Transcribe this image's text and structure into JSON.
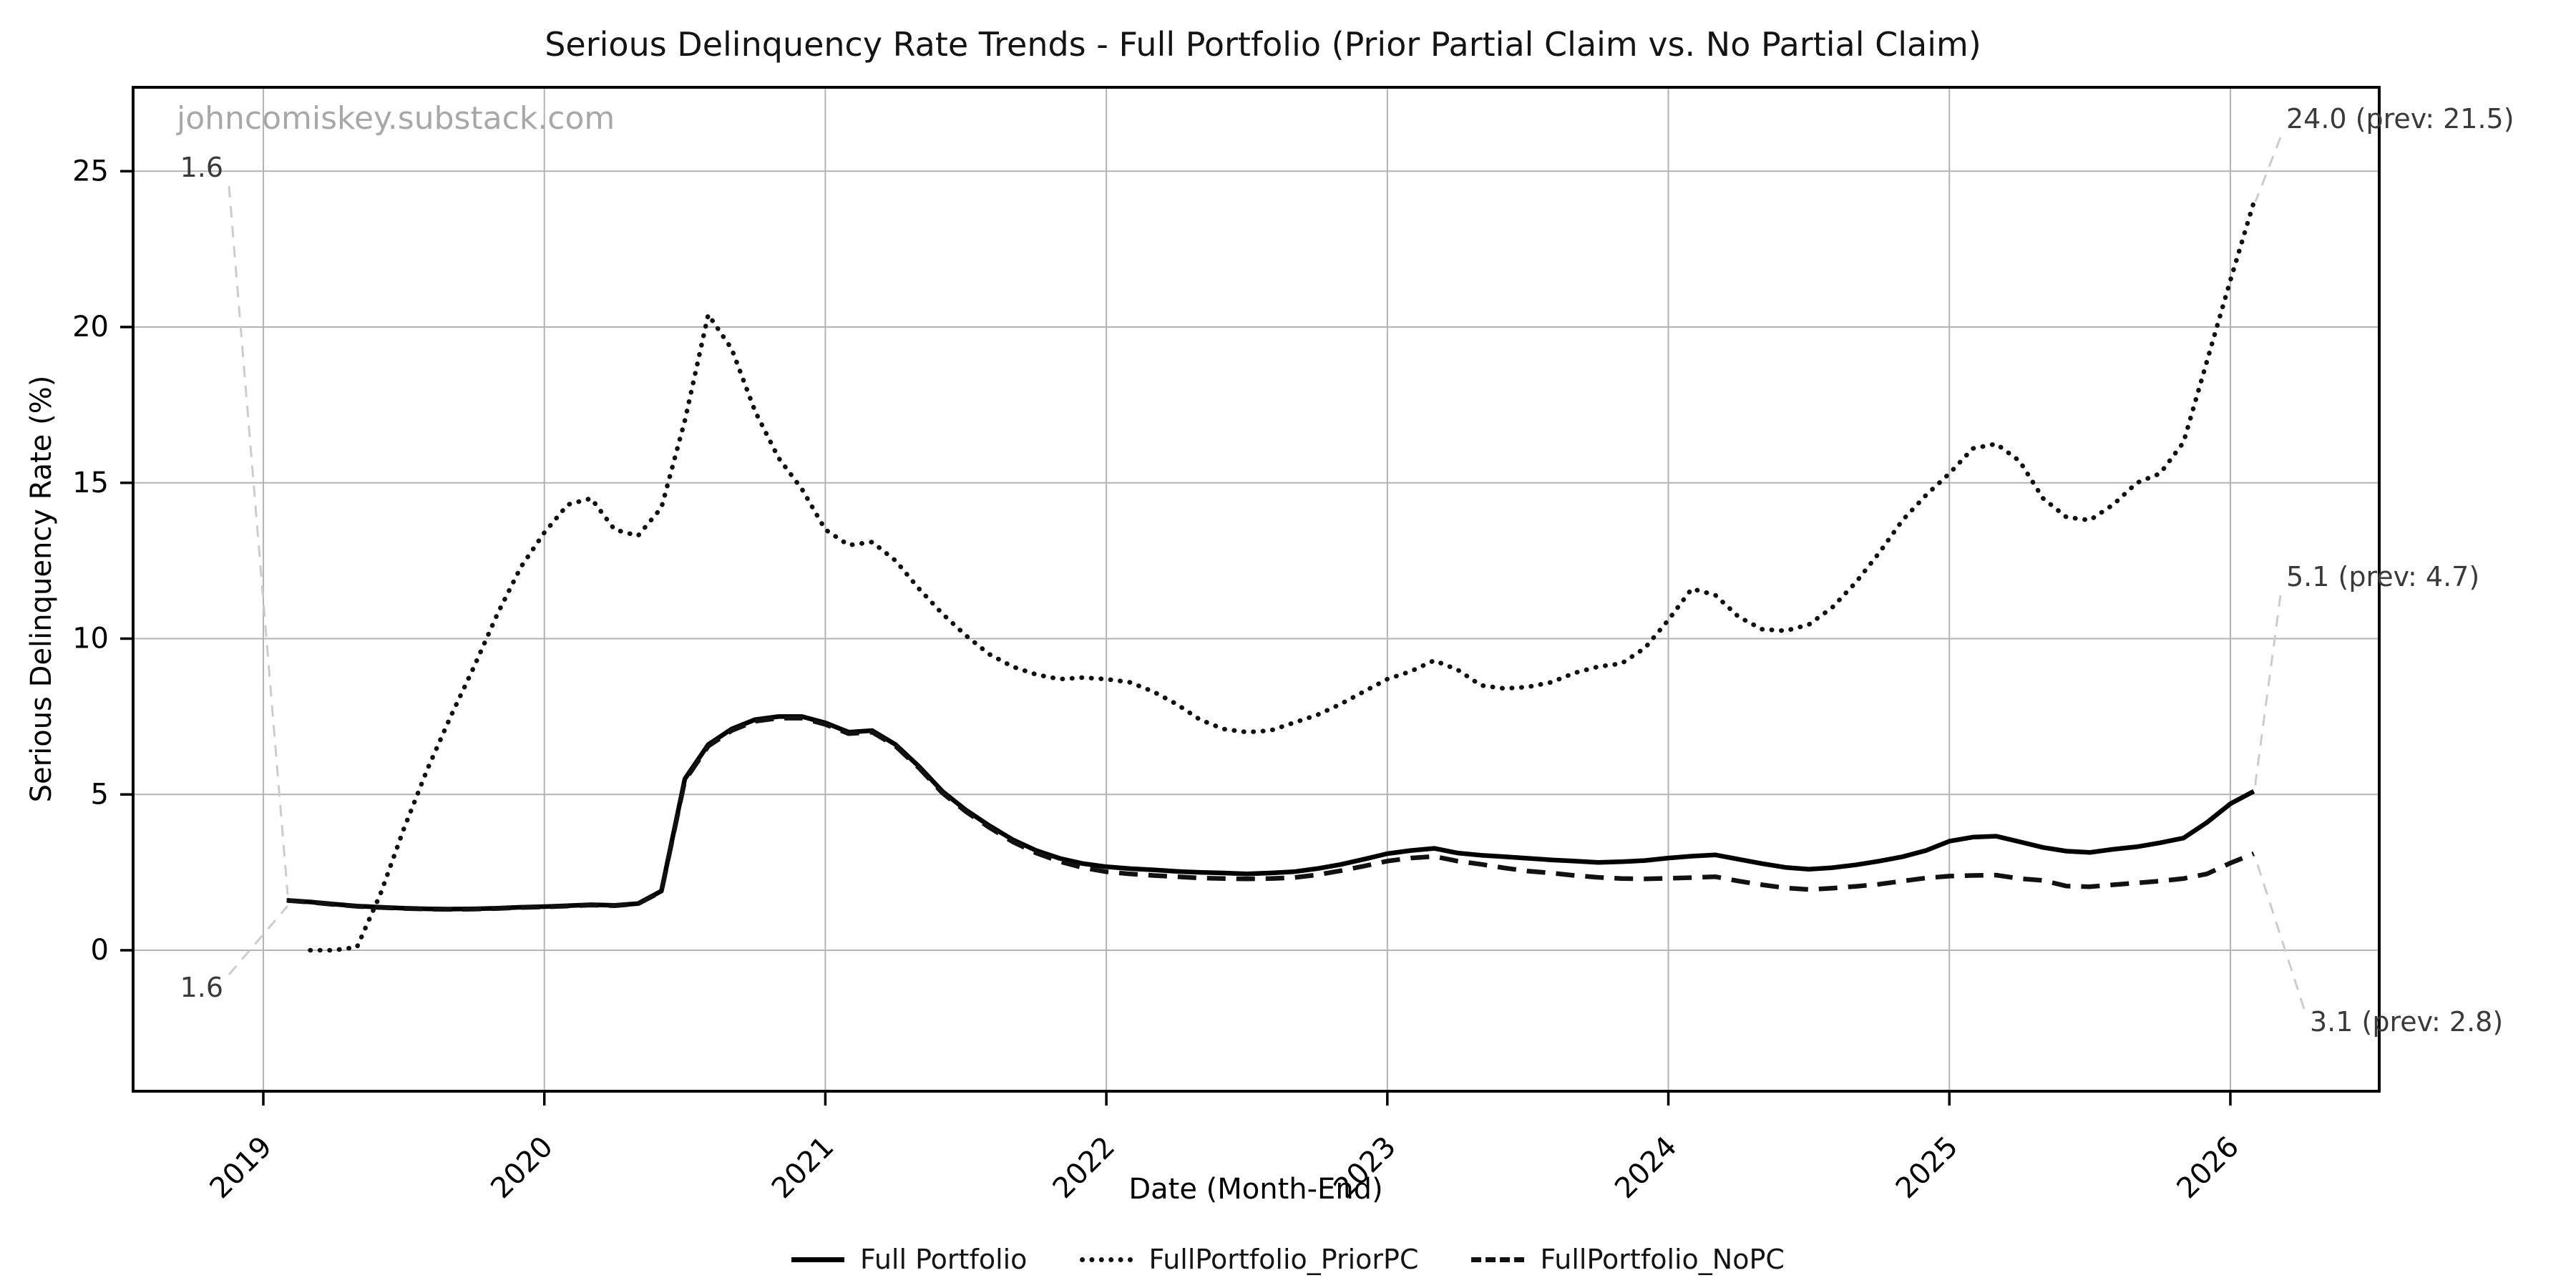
{
  "chart_data": {
    "type": "line",
    "title": "Serious Delinquency Rate Trends - Full Portfolio (Prior Partial Claim vs. No Partial Claim)",
    "xlabel": "Date (Month-End)",
    "ylabel": "Serious Delinquency Rate (%)",
    "watermark": "johncomiskey.substack.com",
    "x_monthly": {
      "start": "2019-01",
      "end": "2026-01",
      "points": 85
    },
    "xticks": [
      "2019",
      "2020",
      "2021",
      "2022",
      "2023",
      "2024",
      "2025",
      "2026"
    ],
    "yticks": [
      0,
      5,
      10,
      15,
      20,
      25
    ],
    "ylim": [
      -4.5,
      27.7
    ],
    "grid": true,
    "legend_position": "bottom-center",
    "series": [
      {
        "name": "Full Portfolio",
        "style": "solid",
        "color": "#000000",
        "values": [
          1.6,
          1.55,
          1.48,
          1.42,
          1.38,
          1.35,
          1.33,
          1.32,
          1.33,
          1.35,
          1.38,
          1.4,
          1.43,
          1.46,
          1.44,
          1.5,
          1.9,
          5.5,
          6.6,
          7.1,
          7.4,
          7.5,
          7.5,
          7.3,
          7.0,
          7.05,
          6.6,
          5.9,
          5.1,
          4.5,
          4.0,
          3.55,
          3.2,
          2.95,
          2.78,
          2.68,
          2.62,
          2.58,
          2.53,
          2.5,
          2.48,
          2.45,
          2.48,
          2.52,
          2.62,
          2.75,
          2.92,
          3.1,
          3.2,
          3.27,
          3.12,
          3.05,
          3.0,
          2.95,
          2.9,
          2.86,
          2.82,
          2.84,
          2.88,
          2.96,
          3.02,
          3.06,
          2.92,
          2.78,
          2.66,
          2.6,
          2.65,
          2.74,
          2.86,
          3.0,
          3.2,
          3.5,
          3.63,
          3.66,
          3.48,
          3.3,
          3.18,
          3.14,
          3.24,
          3.32,
          3.45,
          3.6,
          4.1,
          4.7,
          5.1
        ]
      },
      {
        "name": "FullPortfolio_PriorPC",
        "style": "dotted",
        "color": "#111111",
        "values": [
          null,
          0.0,
          0.0,
          0.1,
          1.8,
          3.9,
          5.8,
          7.5,
          9.1,
          10.8,
          12.3,
          13.4,
          14.3,
          14.5,
          13.5,
          13.3,
          14.2,
          17.0,
          20.4,
          19.3,
          17.3,
          15.8,
          14.8,
          13.5,
          13.0,
          13.1,
          12.5,
          11.6,
          10.8,
          10.1,
          9.5,
          9.1,
          8.85,
          8.7,
          8.75,
          8.7,
          8.6,
          8.3,
          7.9,
          7.4,
          7.1,
          7.0,
          7.05,
          7.3,
          7.55,
          7.9,
          8.3,
          8.7,
          8.95,
          9.3,
          9.0,
          8.5,
          8.4,
          8.45,
          8.6,
          8.9,
          9.1,
          9.2,
          9.7,
          10.6,
          11.6,
          11.4,
          10.7,
          10.3,
          10.25,
          10.45,
          11.0,
          11.8,
          12.75,
          13.8,
          14.6,
          15.3,
          16.1,
          16.25,
          15.7,
          14.5,
          13.9,
          13.8,
          14.3,
          15.0,
          15.3,
          16.3,
          18.9,
          21.5,
          24.0
        ]
      },
      {
        "name": "FullPortfolio_NoPC",
        "style": "dashed",
        "color": "#111111",
        "values": [
          1.6,
          1.54,
          1.47,
          1.41,
          1.37,
          1.34,
          1.32,
          1.31,
          1.32,
          1.34,
          1.37,
          1.39,
          1.42,
          1.45,
          1.43,
          1.49,
          1.88,
          5.45,
          6.55,
          7.05,
          7.35,
          7.45,
          7.45,
          7.25,
          6.95,
          7.0,
          6.55,
          5.85,
          5.05,
          4.45,
          3.94,
          3.48,
          3.12,
          2.85,
          2.65,
          2.52,
          2.45,
          2.4,
          2.36,
          2.32,
          2.3,
          2.29,
          2.3,
          2.33,
          2.42,
          2.55,
          2.7,
          2.86,
          2.96,
          3.01,
          2.86,
          2.76,
          2.64,
          2.54,
          2.48,
          2.4,
          2.34,
          2.3,
          2.29,
          2.31,
          2.33,
          2.36,
          2.22,
          2.1,
          2.0,
          1.95,
          1.99,
          2.05,
          2.12,
          2.22,
          2.32,
          2.38,
          2.4,
          2.41,
          2.3,
          2.24,
          2.06,
          2.04,
          2.1,
          2.16,
          2.22,
          2.3,
          2.45,
          2.8,
          3.1
        ]
      }
    ],
    "annotations": [
      {
        "label": "1.6",
        "text_xy": [
          312,
          238
        ],
        "anchor_xy": [
          402,
          1250
        ],
        "align": "right"
      },
      {
        "label": "1.6",
        "text_xy": [
          312,
          1384
        ],
        "anchor_xy": [
          402,
          1266
        ],
        "align": "right"
      },
      {
        "label": "24.0 (prev: 21.5)",
        "text_xy": [
          3195,
          170
        ],
        "anchor_xy": [
          3152,
          282
        ],
        "align": "left"
      },
      {
        "label": "5.1 (prev: 4.7)",
        "text_xy": [
          3195,
          810
        ],
        "anchor_xy": [
          3151,
          1102
        ],
        "align": "left"
      },
      {
        "label": "3.1 (prev: 2.8)",
        "text_xy": [
          3228,
          1432
        ],
        "anchor_xy": [
          3151,
          1196
        ],
        "align": "left"
      }
    ],
    "colors": {
      "grid": "#b3b3b3",
      "spine": "#000000",
      "leader": "#cccccc",
      "annotation_text": "#3a3a3a"
    }
  }
}
